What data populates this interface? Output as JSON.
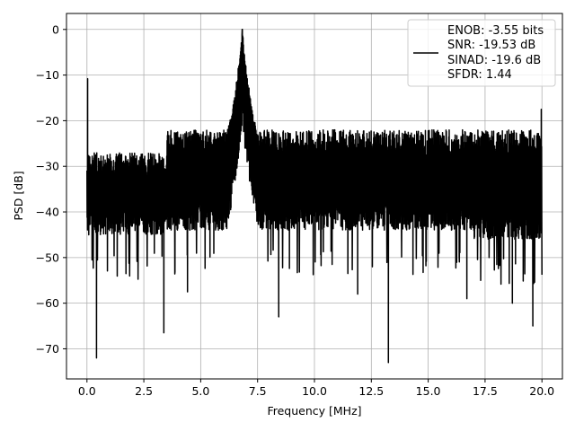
{
  "chart_data": {
    "type": "line",
    "title": "",
    "xlabel": "Frequency [MHz]",
    "ylabel": "PSD [dB]",
    "xlim": [
      -0.9,
      20.9
    ],
    "ylim": [
      -76.6,
      3.5
    ],
    "xticks": [
      0.0,
      2.5,
      5.0,
      7.5,
      10.0,
      12.5,
      15.0,
      17.5,
      20.0
    ],
    "xtick_labels": [
      "0.0",
      "2.5",
      "5.0",
      "7.5",
      "10.0",
      "12.5",
      "15.0",
      "17.5",
      "20.0"
    ],
    "yticks": [
      0,
      -10,
      -20,
      -30,
      -40,
      -50,
      -60,
      -70
    ],
    "ytick_labels": [
      "0",
      "−10",
      "−20",
      "−30",
      "−40",
      "−50",
      "−60",
      "−70"
    ],
    "grid": true,
    "legend_position": "top-right",
    "series": [
      {
        "color": "#000000",
        "x_range": [
          0,
          20
        ],
        "noise_band_db": [
          -46,
          -20
        ],
        "peak": {
          "x": 6.83,
          "y": 0.0
        },
        "spikes": [
          {
            "x": 0.03,
            "y": -10.8
          },
          {
            "x": 0.08,
            "y": -45.0
          },
          {
            "x": 0.42,
            "y": -72.0
          },
          {
            "x": 3.38,
            "y": -66.5
          },
          {
            "x": 4.42,
            "y": -57.5
          },
          {
            "x": 8.43,
            "y": -63.0
          },
          {
            "x": 11.9,
            "y": -58.0
          },
          {
            "x": 13.25,
            "y": -73.0
          },
          {
            "x": 16.7,
            "y": -59.0
          },
          {
            "x": 18.7,
            "y": -60.0
          },
          {
            "x": 19.6,
            "y": -65.0
          },
          {
            "x": 19.97,
            "y": -17.5
          }
        ]
      }
    ],
    "legend": {
      "lines": [
        "ENOB: -3.55 bits",
        "SNR: -19.53 dB",
        "SINAD: -19.6 dB",
        "SFDR: 1.44"
      ]
    }
  }
}
